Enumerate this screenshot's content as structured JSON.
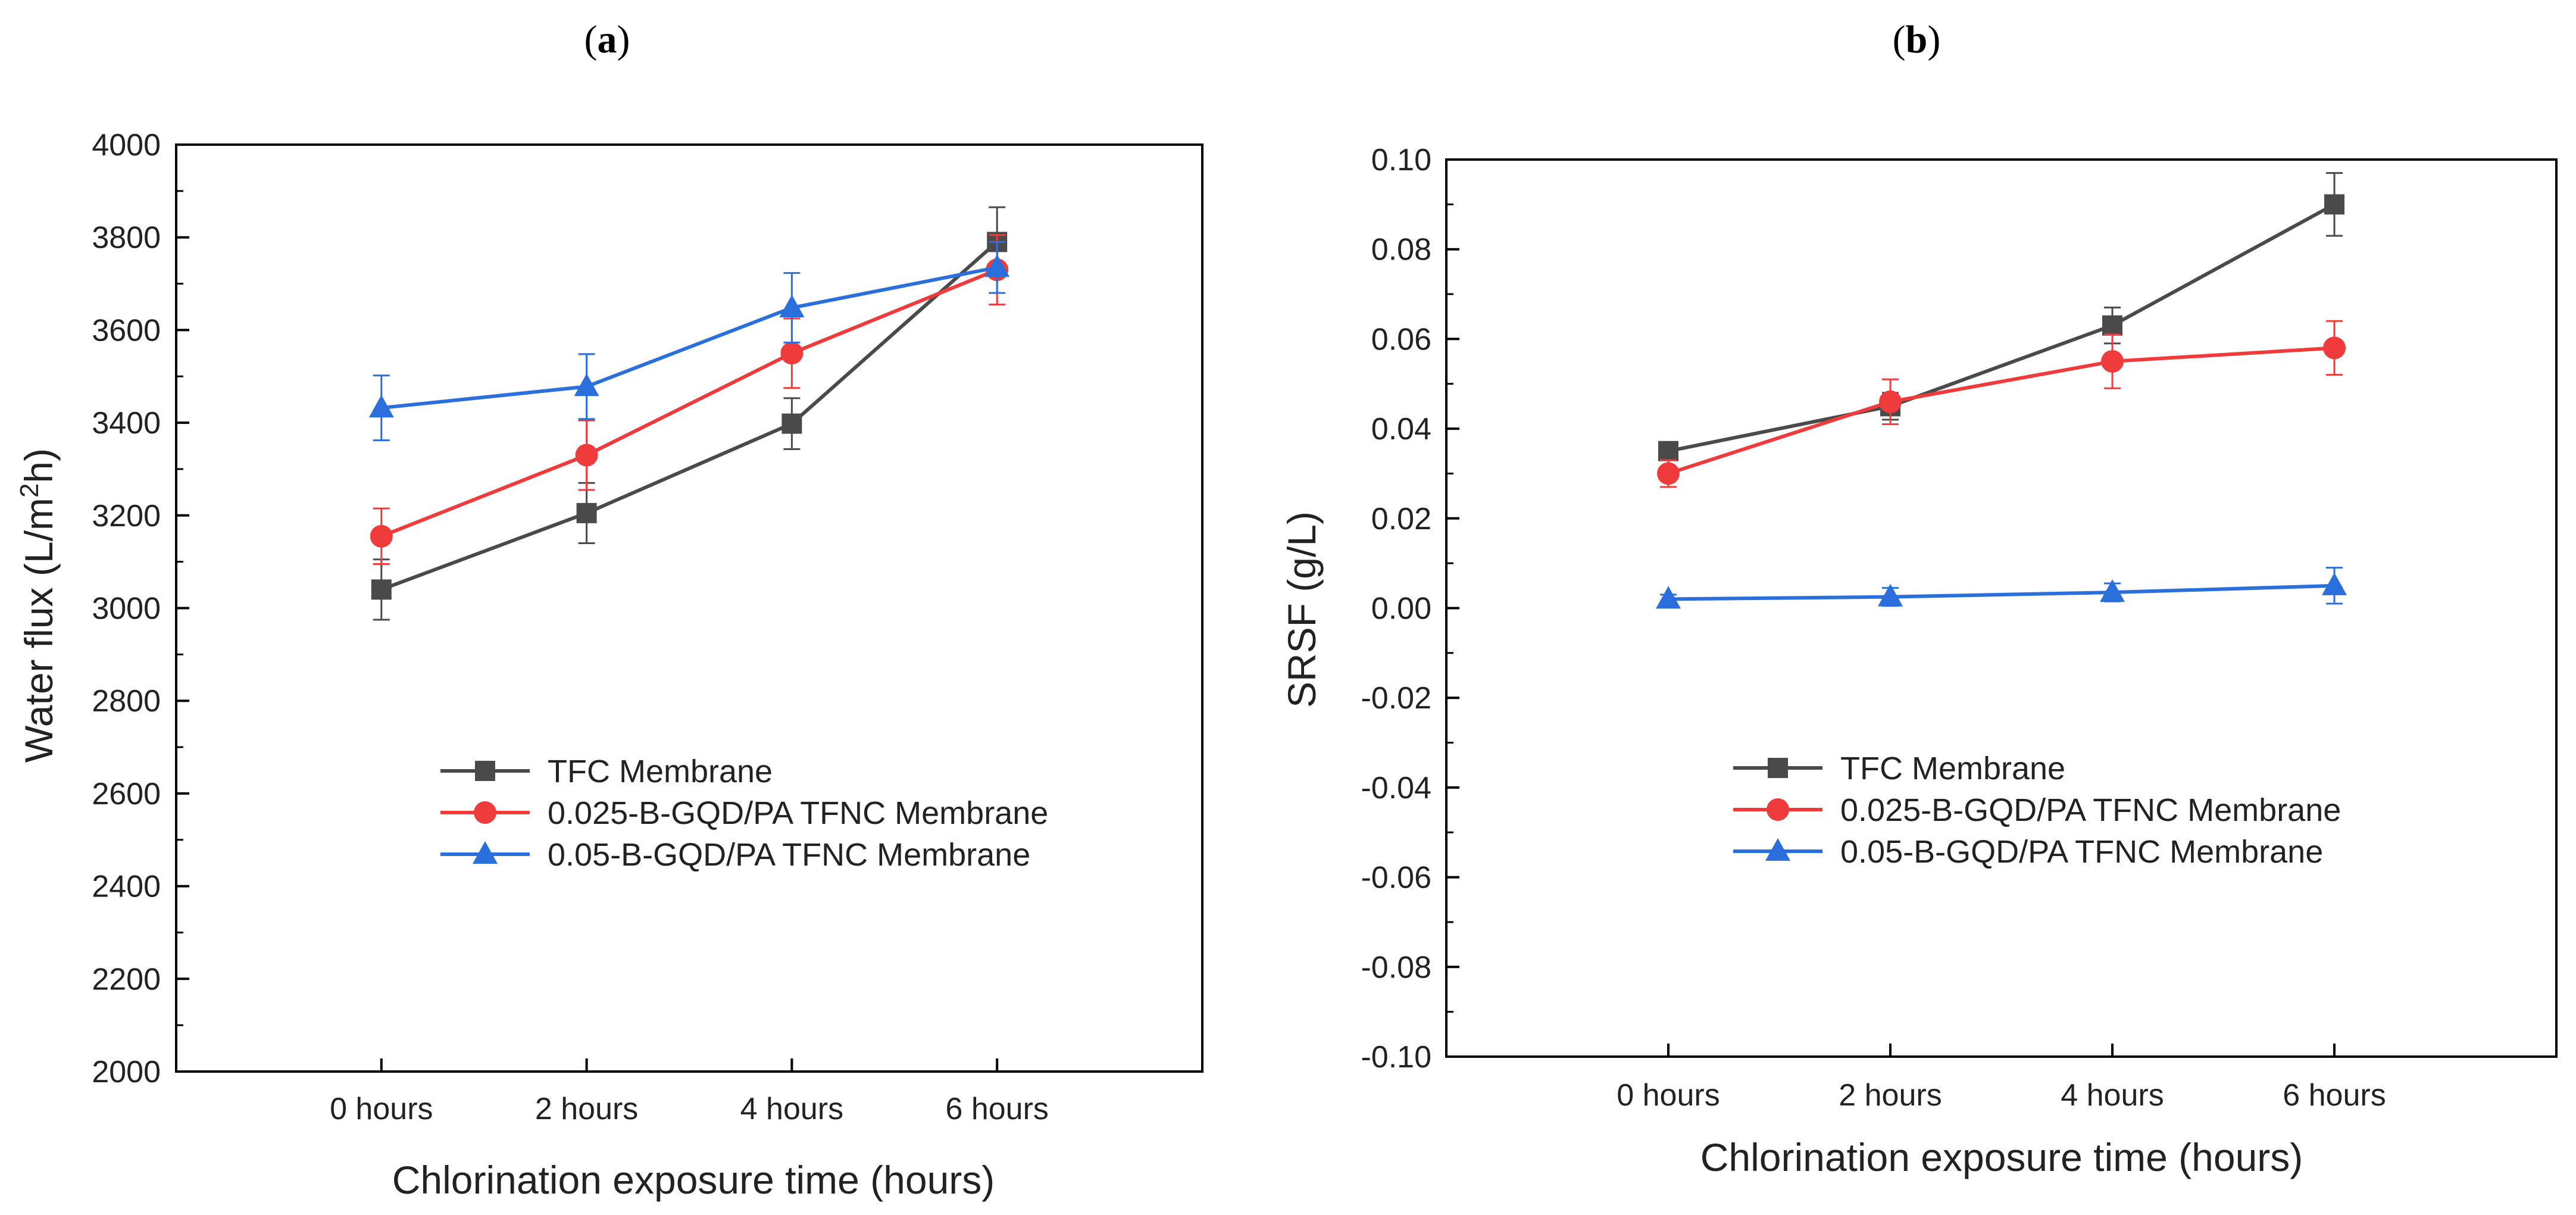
{
  "chart_data": [
    {
      "panel": "(a)",
      "panel_letter": "a",
      "type": "line",
      "categories": [
        "0 hours",
        "2 hours",
        "4 hours",
        "6 hours"
      ],
      "xlabel": "Chlorination exposure time (hours)",
      "ylabel_prefix": "Water flux (L/m",
      "ylabel_sup": "2",
      "ylabel_suffix": "h)",
      "ylim": [
        2000,
        4000
      ],
      "yticks": [
        "2000",
        "2200",
        "2400",
        "2600",
        "2800",
        "3000",
        "3200",
        "3400",
        "3600",
        "3800",
        "4000"
      ],
      "legend_position": "center-left",
      "series": [
        {
          "name": "TFC Membrane",
          "color": "#4a4a4a",
          "marker": "square",
          "values": [
            3040,
            3205,
            3398,
            3790
          ],
          "errors": [
            65,
            65,
            55,
            75
          ]
        },
        {
          "name": "0.025-B-GQD/PA TFNC Membrane",
          "color": "#ef3b3b",
          "marker": "circle",
          "values": [
            3155,
            3330,
            3550,
            3730
          ],
          "errors": [
            60,
            75,
            75,
            75
          ]
        },
        {
          "name": "0.05-B-GQD/PA TFNC Membrane",
          "color": "#2a6fdb",
          "marker": "triangle",
          "values": [
            3432,
            3478,
            3648,
            3735
          ],
          "errors": [
            70,
            70,
            75,
            55
          ]
        }
      ]
    },
    {
      "panel": "(b)",
      "panel_letter": "b",
      "type": "line",
      "categories": [
        "0 hours",
        "2 hours",
        "4 hours",
        "6 hours"
      ],
      "xlabel": "Chlorination exposure time (hours)",
      "ylabel": "SRSF (g/L)",
      "ylim": [
        -0.1,
        0.1
      ],
      "yticks": [
        "-0.10",
        "-0.08",
        "-0.06",
        "-0.04",
        "-0.02",
        "0.00",
        "0.02",
        "0.04",
        "0.06",
        "0.08",
        "0.10"
      ],
      "legend_position": "center-left",
      "series": [
        {
          "name": "TFC Membrane",
          "color": "#4a4a4a",
          "marker": "square",
          "values": [
            0.035,
            0.045,
            0.063,
            0.09
          ],
          "errors": [
            0.002,
            0.003,
            0.004,
            0.007
          ]
        },
        {
          "name": "0.025-B-GQD/PA TFNC Membrane",
          "color": "#ef3b3b",
          "marker": "circle",
          "values": [
            0.03,
            0.046,
            0.055,
            0.058
          ],
          "errors": [
            0.003,
            0.005,
            0.006,
            0.006
          ]
        },
        {
          "name": "0.05-B-GQD/PA TFNC Membrane",
          "color": "#2a6fdb",
          "marker": "triangle",
          "values": [
            0.002,
            0.0025,
            0.0035,
            0.005
          ],
          "errors": [
            0.001,
            0.002,
            0.002,
            0.004
          ]
        }
      ]
    }
  ]
}
